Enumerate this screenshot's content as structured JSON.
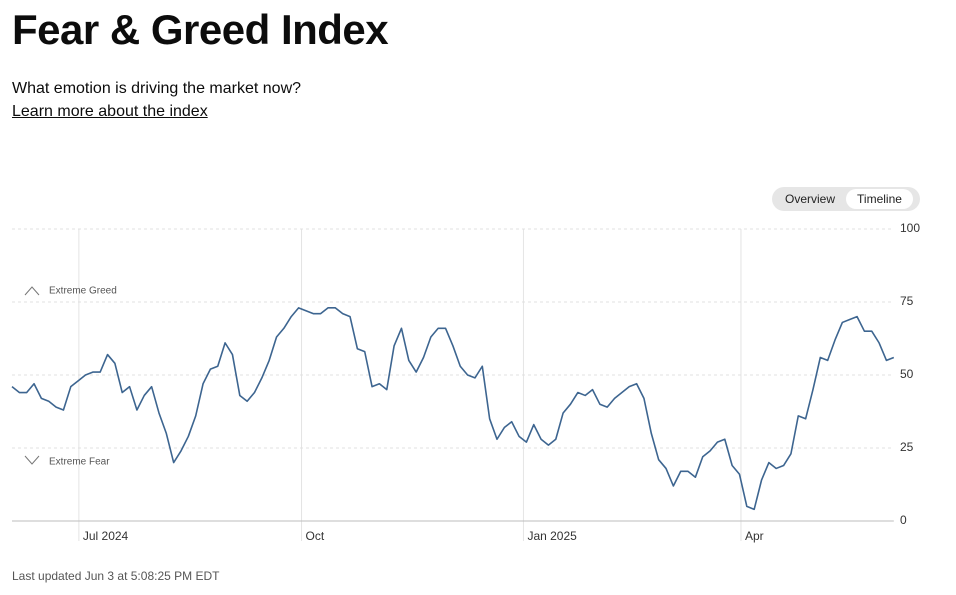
{
  "header": {
    "title": "Fear & Greed Index",
    "subtitle": "What emotion is driving the market now?",
    "link": "Learn more about the index"
  },
  "tabs": [
    "Overview",
    "Timeline"
  ],
  "chart_data": {
    "type": "line",
    "categories": [
      null,
      null,
      null,
      null,
      null,
      null,
      null,
      null,
      null,
      null,
      null,
      null,
      null,
      null,
      null,
      null,
      null,
      null,
      null,
      null,
      null,
      null,
      null,
      null,
      null,
      null,
      null,
      null,
      null,
      null,
      null,
      null,
      null,
      null,
      null,
      null,
      null,
      null,
      null,
      null,
      null,
      null,
      null,
      null,
      null,
      null,
      null,
      null,
      null,
      null,
      null,
      null,
      null,
      null,
      null,
      null,
      null,
      null,
      null,
      null,
      null,
      null,
      null,
      null,
      null,
      null,
      null,
      null,
      null,
      null,
      null,
      null,
      null,
      null,
      null,
      null,
      null,
      null,
      null,
      null,
      null,
      null,
      null,
      null,
      null,
      null,
      null,
      null,
      null,
      null,
      null,
      null,
      null,
      null,
      null,
      null,
      null,
      null,
      null,
      null,
      null,
      null,
      null,
      null,
      null,
      null,
      null,
      null,
      null,
      null,
      null,
      null,
      null,
      null,
      null,
      null,
      null,
      null,
      null,
      null,
      null
    ],
    "values": [
      46,
      44,
      44,
      47,
      42,
      41,
      39,
      38,
      46,
      48,
      50,
      51,
      51,
      57,
      54,
      44,
      46,
      38,
      43,
      46,
      37,
      30,
      20,
      24,
      29,
      36,
      47,
      52,
      53,
      61,
      57,
      43,
      41,
      44,
      49,
      55,
      63,
      66,
      70,
      73,
      72,
      71,
      71,
      73,
      73,
      71,
      70,
      59,
      58,
      46,
      47,
      45,
      60,
      66,
      55,
      51,
      56,
      63,
      66,
      66,
      60,
      53,
      50,
      49,
      53,
      35,
      28,
      32,
      34,
      29,
      27,
      33,
      28,
      26,
      28,
      37,
      40,
      44,
      43,
      45,
      40,
      39,
      42,
      44,
      46,
      47,
      42,
      30,
      21,
      18,
      12,
      17,
      17,
      15,
      22,
      24,
      27,
      28,
      19,
      16,
      5,
      4,
      14,
      20,
      18,
      19,
      23,
      36,
      35,
      45,
      56,
      55,
      62,
      68,
      69,
      70,
      65,
      65,
      61,
      55,
      56
    ],
    "color": "#3d6590",
    "xlim": [
      0,
      120
    ],
    "xticks": [
      {
        "value": 9.1,
        "label": "Jul 2024"
      },
      {
        "value": 39.4,
        "label": "Oct"
      },
      {
        "value": 69.6,
        "label": "Jan 2025"
      },
      {
        "value": 99.2,
        "label": "Apr"
      }
    ],
    "ylim": [
      0,
      100
    ],
    "yticks": [
      0,
      25,
      50,
      75,
      100
    ],
    "grid": true,
    "annotations": [
      "Extreme Greed",
      "Extreme Fear"
    ]
  },
  "footer": "Last updated Jun 3 at 5:08:25 PM EDT"
}
